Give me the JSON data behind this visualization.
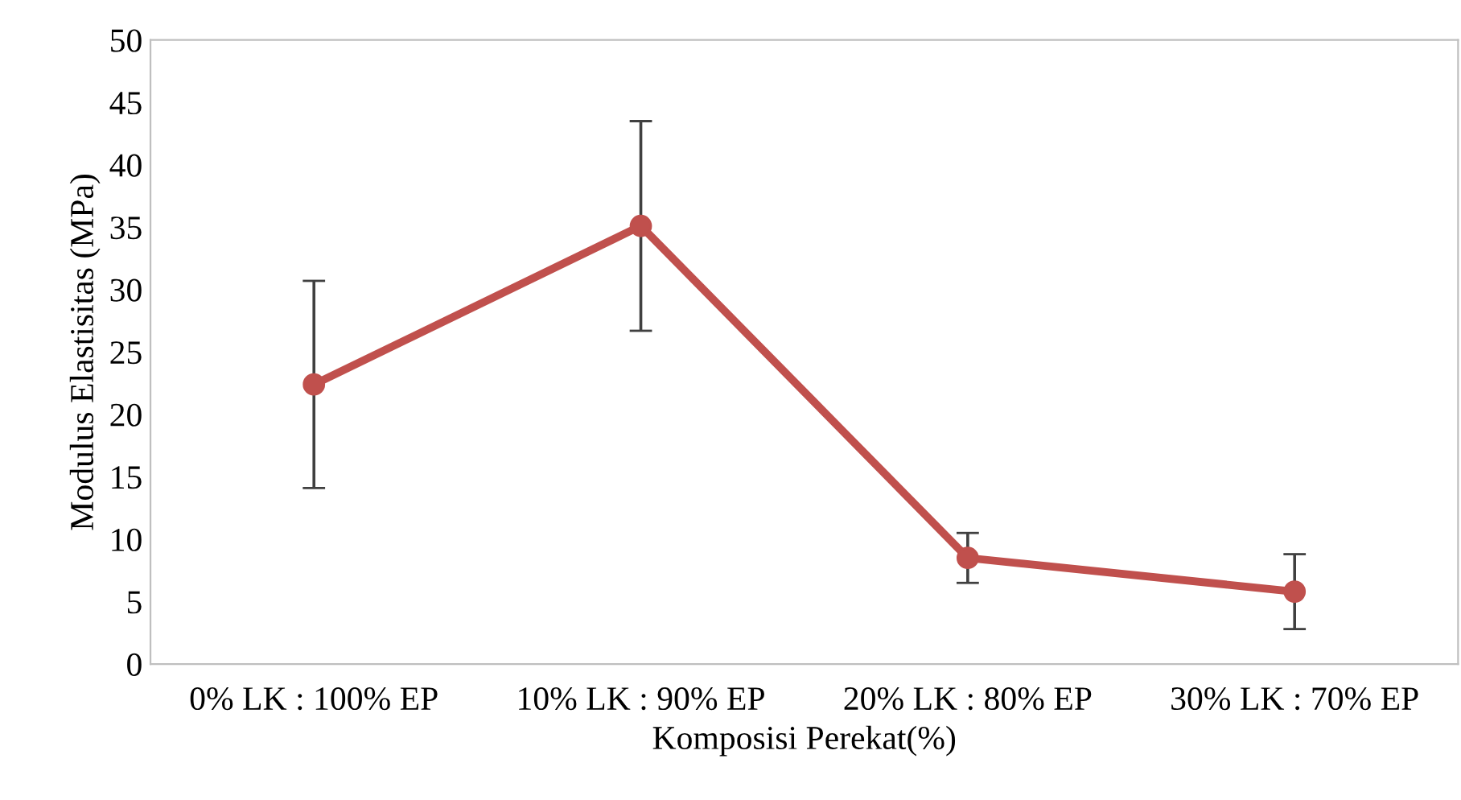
{
  "chart_data": {
    "type": "line",
    "xlabel": "Komposisi Perekat(%)",
    "ylabel": "Modulus Elastisitas (MPa)",
    "categories": [
      "0% LK : 100% EP",
      "10% LK : 90% EP",
      "20% LK : 80% EP",
      "30% LK : 70% EP"
    ],
    "series": [
      {
        "color": "#c0504d",
        "values": [
          22.4,
          35.1,
          8.5,
          5.8
        ],
        "errors": [
          8.3,
          8.4,
          2.0,
          3.0
        ]
      }
    ],
    "ylim": [
      0,
      50
    ],
    "yticks": [
      0,
      5,
      10,
      15,
      20,
      25,
      30,
      35,
      40,
      45,
      50
    ],
    "grid": false,
    "legend": false,
    "marker": "circle",
    "line_style": "solid"
  }
}
